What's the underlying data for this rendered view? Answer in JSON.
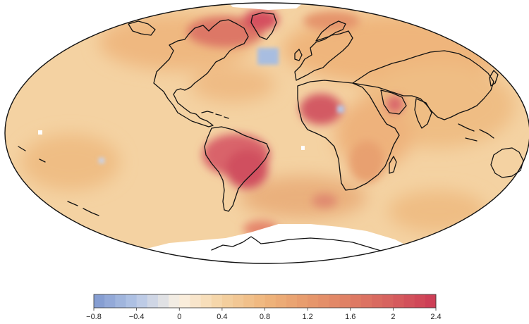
{
  "colors": {
    "ocean_base": "#f4d2a2",
    "warm_light": "#efbd84",
    "warm_mid": "#e9a36e",
    "warm_strong": "#dd7165",
    "hot": "#d04a5d",
    "cool": "#a8bde0",
    "no_data": "#ffffff",
    "coastline": "#111111"
  },
  "colorbar": {
    "min": -0.8,
    "max": 2.4,
    "step": 0.1,
    "tick_labels": [
      "−0.8",
      "−0.4",
      "0",
      "0.4",
      "0.8",
      "1.2",
      "1.6",
      "2",
      "2.4"
    ],
    "stops": [
      {
        "value": -0.8,
        "color": "#7f98cf"
      },
      {
        "value": -0.4,
        "color": "#b4c6e6"
      },
      {
        "value": 0.0,
        "color": "#fbf1e3"
      },
      {
        "value": 0.4,
        "color": "#f4d2a2"
      },
      {
        "value": 0.8,
        "color": "#efb57c"
      },
      {
        "value": 1.2,
        "color": "#e79a6c"
      },
      {
        "value": 1.6,
        "color": "#df7d64"
      },
      {
        "value": 2.0,
        "color": "#d65f5e"
      },
      {
        "value": 2.4,
        "color": "#cc3a55"
      }
    ]
  }
}
